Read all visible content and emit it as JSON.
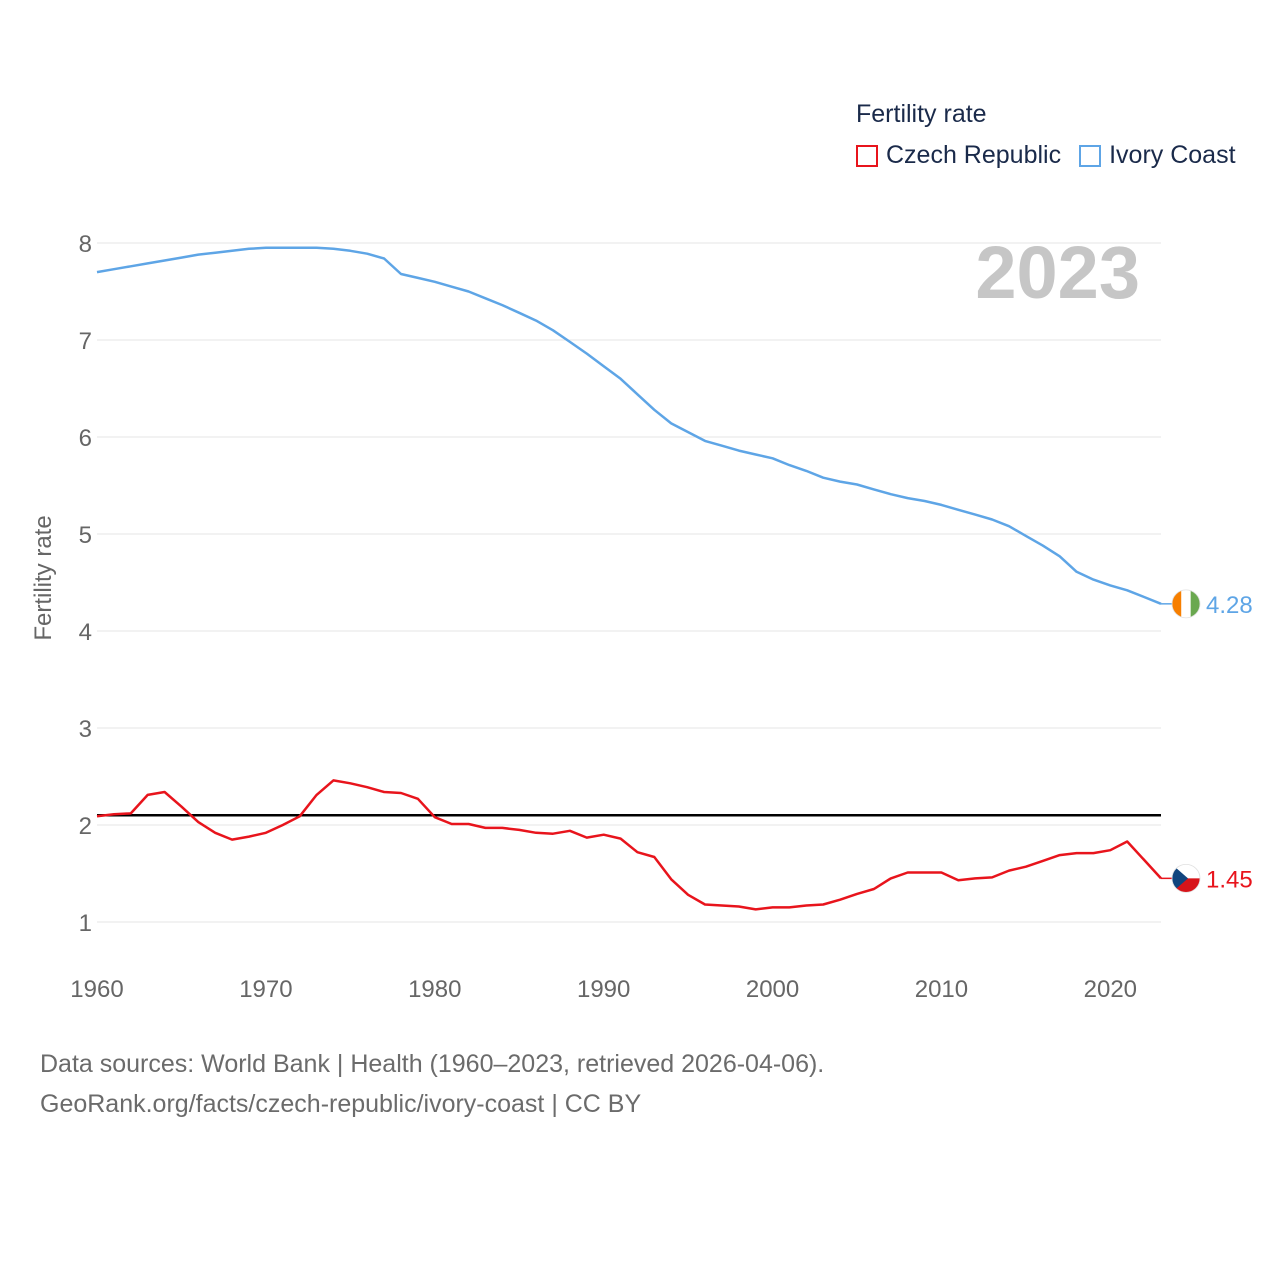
{
  "chart_data": {
    "type": "line",
    "legend_title": "Fertility rate",
    "ylabel": "Fertility rate",
    "year_label": "2023",
    "x_ticks": [
      1960,
      1970,
      1980,
      1990,
      2000,
      2010,
      2020
    ],
    "y_ticks": [
      1,
      2,
      3,
      4,
      5,
      6,
      7,
      8
    ],
    "xlim": [
      1960,
      2023
    ],
    "ylim": [
      0.55,
      8.3
    ],
    "reference_line": 2.1,
    "series": [
      {
        "name": "Czech Republic",
        "color": "#e8141c",
        "end_label": "1.45",
        "start_year": 1960,
        "values": [
          2.09,
          2.11,
          2.12,
          2.31,
          2.34,
          2.19,
          2.03,
          1.92,
          1.85,
          1.88,
          1.92,
          2.0,
          2.09,
          2.31,
          2.46,
          2.43,
          2.39,
          2.34,
          2.33,
          2.27,
          2.08,
          2.01,
          2.01,
          1.97,
          1.97,
          1.95,
          1.92,
          1.91,
          1.94,
          1.87,
          1.9,
          1.86,
          1.72,
          1.67,
          1.44,
          1.28,
          1.18,
          1.17,
          1.16,
          1.13,
          1.15,
          1.15,
          1.17,
          1.18,
          1.23,
          1.29,
          1.34,
          1.45,
          1.51,
          1.51,
          1.51,
          1.43,
          1.45,
          1.46,
          1.53,
          1.57,
          1.63,
          1.69,
          1.71,
          1.71,
          1.74,
          1.83,
          1.64,
          1.45
        ]
      },
      {
        "name": "Ivory Coast",
        "color": "#5ea5e6",
        "end_label": "4.28",
        "start_year": 1960,
        "values": [
          7.7,
          7.73,
          7.76,
          7.79,
          7.82,
          7.85,
          7.88,
          7.9,
          7.92,
          7.94,
          7.95,
          7.95,
          7.95,
          7.95,
          7.94,
          7.92,
          7.89,
          7.84,
          7.68,
          7.64,
          7.6,
          7.55,
          7.5,
          7.43,
          7.36,
          7.28,
          7.2,
          7.1,
          6.98,
          6.86,
          6.73,
          6.6,
          6.44,
          6.28,
          6.14,
          6.05,
          5.96,
          5.91,
          5.86,
          5.82,
          5.78,
          5.71,
          5.65,
          5.58,
          5.54,
          5.51,
          5.46,
          5.41,
          5.37,
          5.34,
          5.3,
          5.25,
          5.2,
          5.15,
          5.08,
          4.98,
          4.88,
          4.77,
          4.61,
          4.53,
          4.47,
          4.42,
          4.35,
          4.28
        ]
      }
    ]
  },
  "source": {
    "line1": "Data sources: World Bank | Health (1960–2023, retrieved 2026-04-06).",
    "line2": "GeoRank.org/facts/czech-republic/ivory-coast | CC BY"
  }
}
